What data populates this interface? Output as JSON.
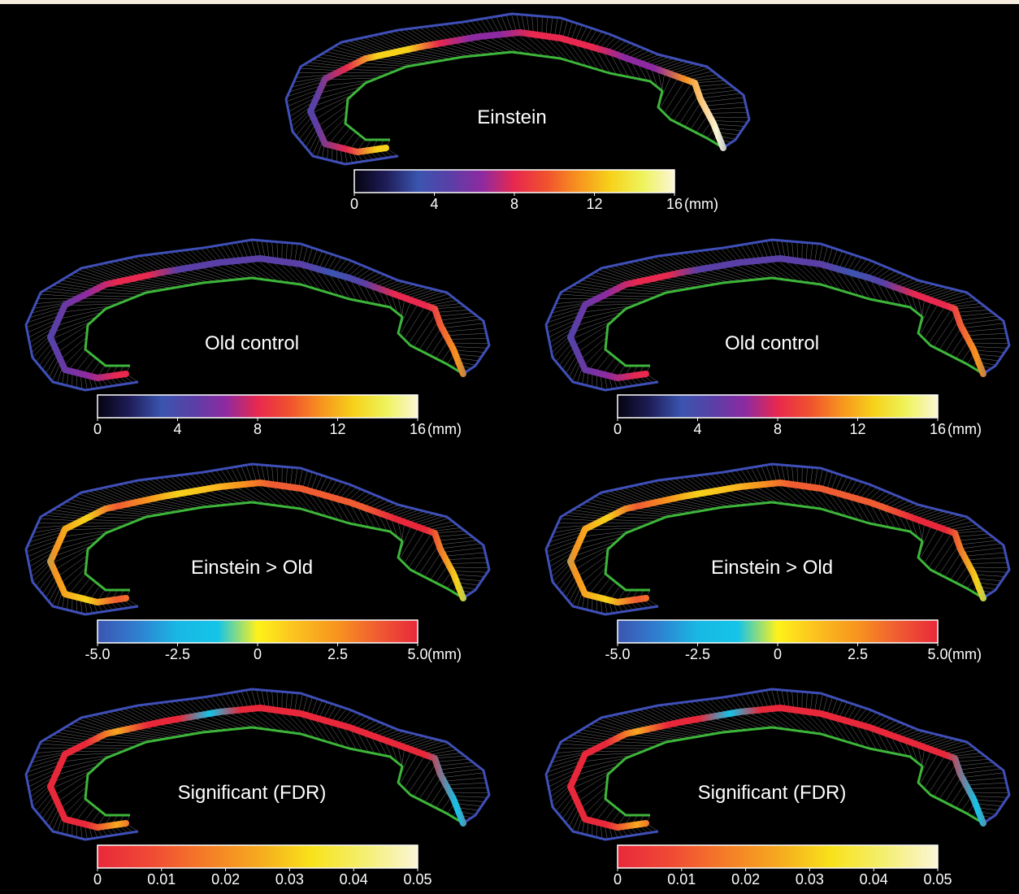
{
  "colors": {
    "background": "#000000",
    "outer_contour": "#3f4fb8",
    "inner_contour": "#3db63a",
    "mesh_lines": "#cfcfcf"
  },
  "unit": "(mm)",
  "colormaps": {
    "thickness": [
      "#05030f",
      "#1f1d58",
      "#3b55b0",
      "#5a3fa6",
      "#8e2aa1",
      "#e8284e",
      "#f0512e",
      "#f7941e",
      "#f6d21a",
      "#eef35a",
      "#fbf6d6"
    ],
    "difference": [
      "#3c55b0",
      "#2f7fd0",
      "#19b8e4",
      "#14c4e8",
      "#fff21a",
      "#fbbf1f",
      "#f7941e",
      "#f05c32",
      "#e8283a"
    ],
    "pvalue": [
      "#e8283a",
      "#f04a35",
      "#f57b28",
      "#f6a81f",
      "#f8e21a",
      "#f4ef70",
      "#fbf6d6"
    ]
  },
  "panels": [
    {
      "id": "einstein-top",
      "title": "Einstein",
      "colorbar": {
        "map": "thickness",
        "ticks": [
          "0",
          "4",
          "8",
          "12",
          "16"
        ],
        "unit": "(mm)"
      }
    },
    {
      "id": "old-control-left",
      "title": "Old control",
      "colorbar": {
        "map": "thickness",
        "ticks": [
          "0",
          "4",
          "8",
          "12",
          "16"
        ],
        "unit": "(mm)"
      }
    },
    {
      "id": "old-control-right",
      "title": "Old control",
      "colorbar": {
        "map": "thickness",
        "ticks": [
          "0",
          "4",
          "8",
          "12",
          "16"
        ],
        "unit": "(mm)"
      }
    },
    {
      "id": "einstein-vs-old-left",
      "title": "Einstein > Old",
      "colorbar": {
        "map": "difference",
        "ticks": [
          "-5.0",
          "-2.5",
          "0",
          "2.5",
          "5.0"
        ],
        "unit": "(mm)"
      }
    },
    {
      "id": "einstein-vs-old-right",
      "title": "Einstein > Old",
      "colorbar": {
        "map": "difference",
        "ticks": [
          "-5.0",
          "-2.5",
          "0",
          "2.5",
          "5.0"
        ],
        "unit": "(mm)"
      }
    },
    {
      "id": "significant-left",
      "title": "Significant (FDR)",
      "colorbar": {
        "map": "pvalue",
        "ticks": [
          "0",
          "0.01",
          "0.02",
          "0.03",
          "0.04",
          "0.05"
        ],
        "unit": ""
      }
    },
    {
      "id": "significant-right",
      "title": "Significant (FDR)",
      "colorbar": {
        "map": "pvalue",
        "ticks": [
          "0",
          "0.01",
          "0.02",
          "0.03",
          "0.04",
          "0.05"
        ],
        "unit": ""
      }
    }
  ]
}
